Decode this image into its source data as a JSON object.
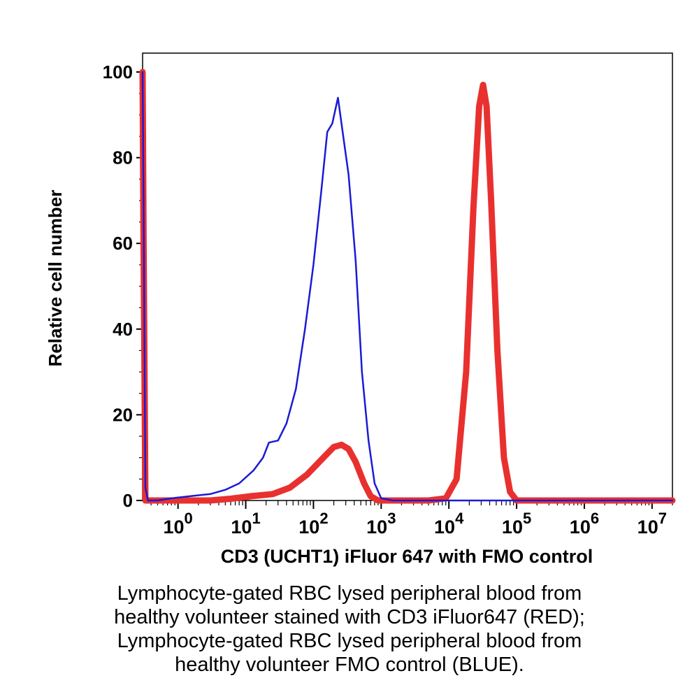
{
  "chart_data": {
    "type": "line",
    "title": "",
    "xlabel": "CD3 (UCHT1) iFluor 647 with FMO control",
    "ylabel": "Relative cell number",
    "x_scale": "log",
    "xlim": [
      0.3,
      20000000
    ],
    "ylim": [
      0,
      100
    ],
    "grid": false,
    "legend": "none",
    "y_ticks": [
      "0",
      "20",
      "40",
      "60",
      "80",
      "100"
    ],
    "y_tick_values": [
      0,
      20,
      40,
      60,
      80,
      100
    ],
    "x_ticks": [
      {
        "value": 1,
        "base": "10",
        "exp": "0"
      },
      {
        "value": 10,
        "base": "10",
        "exp": "1"
      },
      {
        "value": 100,
        "base": "10",
        "exp": "2"
      },
      {
        "value": 1000,
        "base": "10",
        "exp": "3"
      },
      {
        "value": 10000,
        "base": "10",
        "exp": "4"
      },
      {
        "value": 100000,
        "base": "10",
        "exp": "5"
      },
      {
        "value": 1000000,
        "base": "10",
        "exp": "6"
      },
      {
        "value": 10000000,
        "base": "10",
        "exp": "7"
      }
    ],
    "series": [
      {
        "color": "#1a1ad6",
        "points": [
          [
            0.3,
            100
          ],
          [
            0.31,
            70
          ],
          [
            0.33,
            3
          ],
          [
            0.36,
            0
          ],
          [
            0.5,
            0
          ],
          [
            0.8,
            0.5
          ],
          [
            1.5,
            1
          ],
          [
            3,
            1.5
          ],
          [
            5,
            2.5
          ],
          [
            8,
            4
          ],
          [
            13,
            7
          ],
          [
            18,
            10
          ],
          [
            22,
            13.5
          ],
          [
            30,
            14
          ],
          [
            40,
            18
          ],
          [
            55,
            26
          ],
          [
            75,
            40
          ],
          [
            100,
            55
          ],
          [
            130,
            72
          ],
          [
            160,
            86
          ],
          [
            190,
            88
          ],
          [
            230,
            94
          ],
          [
            270,
            86
          ],
          [
            330,
            76
          ],
          [
            420,
            56
          ],
          [
            520,
            30
          ],
          [
            650,
            14
          ],
          [
            800,
            4
          ],
          [
            1000,
            0.5
          ],
          [
            1500,
            0
          ],
          [
            20000000,
            0
          ]
        ]
      },
      {
        "color": "#e8312f",
        "points": [
          [
            0.3,
            100
          ],
          [
            0.31,
            60
          ],
          [
            0.33,
            0
          ],
          [
            3,
            0
          ],
          [
            6,
            0.4
          ],
          [
            12,
            1
          ],
          [
            25,
            1.5
          ],
          [
            45,
            3
          ],
          [
            80,
            6
          ],
          [
            140,
            10
          ],
          [
            200,
            12.5
          ],
          [
            260,
            13
          ],
          [
            330,
            12
          ],
          [
            420,
            9
          ],
          [
            560,
            4
          ],
          [
            700,
            1
          ],
          [
            900,
            0
          ],
          [
            5000,
            0
          ],
          [
            9000,
            0.5
          ],
          [
            13000,
            5
          ],
          [
            18000,
            30
          ],
          [
            23000,
            68
          ],
          [
            28000,
            92
          ],
          [
            32000,
            97
          ],
          [
            36000,
            92
          ],
          [
            42000,
            70
          ],
          [
            52000,
            35
          ],
          [
            65000,
            10
          ],
          [
            80000,
            2
          ],
          [
            100000,
            0
          ],
          [
            20000000,
            0
          ]
        ]
      }
    ]
  },
  "caption": {
    "lines": [
      "Lymphocyte-gated RBC lysed peripheral blood from",
      "healthy volunteer stained with CD3 iFluor647 (RED);",
      "Lymphocyte-gated RBC lysed peripheral blood from",
      "healthy volunteer FMO control (BLUE)."
    ]
  }
}
